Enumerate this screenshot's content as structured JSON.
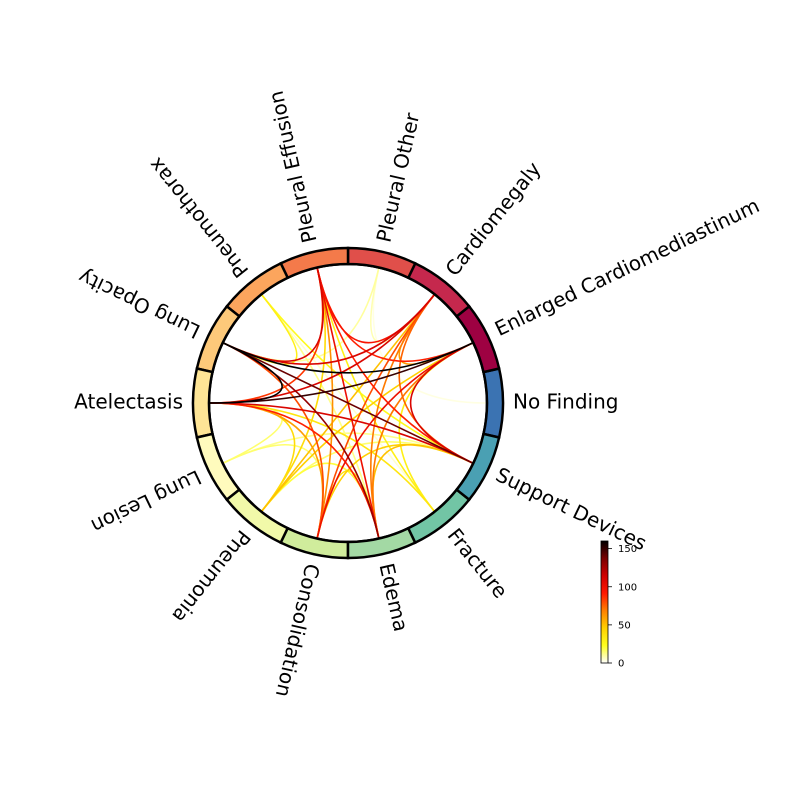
{
  "chart_data": {
    "type": "chord",
    "title": "",
    "nodes": [
      {
        "name": "No Finding",
        "color": "#3b73b2"
      },
      {
        "name": "Enlarged Cardiomediastinum",
        "color": "#9e0142"
      },
      {
        "name": "Cardiomegaly",
        "color": "#c5284d"
      },
      {
        "name": "Pleural Other",
        "color": "#e04f4a"
      },
      {
        "name": "Pleural Effusion",
        "color": "#f47a4a"
      },
      {
        "name": "Pneumothorax",
        "color": "#fca55d"
      },
      {
        "name": "Lung Opacity",
        "color": "#fdc97a"
      },
      {
        "name": "Atelectasis",
        "color": "#fee596"
      },
      {
        "name": "Lung Lesion",
        "color": "#fffbbd"
      },
      {
        "name": "Pneumonia",
        "color": "#f1f9a9"
      },
      {
        "name": "Consolidation",
        "color": "#d0ec9c"
      },
      {
        "name": "Edema",
        "color": "#a3d9a4"
      },
      {
        "name": "Fracture",
        "color": "#72c5a5"
      },
      {
        "name": "Support Devices",
        "color": "#4aa0b3"
      }
    ],
    "links": [
      {
        "source": "Lung Opacity",
        "target": "Atelectasis",
        "value": 160
      },
      {
        "source": "Lung Opacity",
        "target": "Enlarged Cardiomediastinum",
        "value": 160
      },
      {
        "source": "Atelectasis",
        "target": "Enlarged Cardiomediastinum",
        "value": 150
      },
      {
        "source": "Lung Opacity",
        "target": "Support Devices",
        "value": 140
      },
      {
        "source": "Lung Opacity",
        "target": "Edema",
        "value": 130
      },
      {
        "source": "Atelectasis",
        "target": "Cardiomegaly",
        "value": 110
      },
      {
        "source": "Lung Opacity",
        "target": "Cardiomegaly",
        "value": 110
      },
      {
        "source": "Lung Opacity",
        "target": "Pleural Effusion",
        "value": 110
      },
      {
        "source": "Atelectasis",
        "target": "Support Devices",
        "value": 110
      },
      {
        "source": "Enlarged Cardiomediastinum",
        "target": "Support Devices",
        "value": 110
      },
      {
        "source": "Enlarged Cardiomediastinum",
        "target": "Consolidation",
        "value": 100
      },
      {
        "source": "Pleural Effusion",
        "target": "Edema",
        "value": 100
      },
      {
        "source": "Pleural Effusion",
        "target": "Cardiomegaly",
        "value": 95
      },
      {
        "source": "Pleural Effusion",
        "target": "Enlarged Cardiomediastinum",
        "value": 90
      },
      {
        "source": "Pleural Effusion",
        "target": "Support Devices",
        "value": 90
      },
      {
        "source": "Atelectasis",
        "target": "Edema",
        "value": 90
      },
      {
        "source": "Atelectasis",
        "target": "Pleural Effusion",
        "value": 85
      },
      {
        "source": "Lung Opacity",
        "target": "Consolidation",
        "value": 80
      },
      {
        "source": "Cardiomegaly",
        "target": "Consolidation",
        "value": 80
      },
      {
        "source": "Cardiomegaly",
        "target": "Support Devices",
        "value": 75
      },
      {
        "source": "Cardiomegaly",
        "target": "Edema",
        "value": 70
      },
      {
        "source": "Enlarged Cardiomediastinum",
        "target": "Edema",
        "value": 70
      },
      {
        "source": "Pleural Effusion",
        "target": "Consolidation",
        "value": 65
      },
      {
        "source": "Atelectasis",
        "target": "Consolidation",
        "value": 60
      },
      {
        "source": "Cardiomegaly",
        "target": "Enlarged Cardiomediastinum",
        "value": 60
      },
      {
        "source": "Cardiomegaly",
        "target": "Pneumonia",
        "value": 50
      },
      {
        "source": "Edema",
        "target": "Support Devices",
        "value": 50
      },
      {
        "source": "Consolidation",
        "target": "Support Devices",
        "value": 45
      },
      {
        "source": "Enlarged Cardiomediastinum",
        "target": "Pneumonia",
        "value": 45
      },
      {
        "source": "Atelectasis",
        "target": "Pneumonia",
        "value": 40
      },
      {
        "source": "Pleural Effusion",
        "target": "Pneumonia",
        "value": 40
      },
      {
        "source": "Consolidation",
        "target": "Edema",
        "value": 35
      },
      {
        "source": "Atelectasis",
        "target": "Fracture",
        "value": 35
      },
      {
        "source": "Pleural Effusion",
        "target": "Fracture",
        "value": 30
      },
      {
        "source": "Enlarged Cardiomediastinum",
        "target": "Fracture",
        "value": 30
      },
      {
        "source": "Lung Opacity",
        "target": "Pneumothorax",
        "value": 30
      },
      {
        "source": "Pneumothorax",
        "target": "Support Devices",
        "value": 25
      },
      {
        "source": "Pneumonia",
        "target": "Edema",
        "value": 20
      },
      {
        "source": "Lung Lesion",
        "target": "Atelectasis",
        "value": 15
      },
      {
        "source": "Lung Lesion",
        "target": "Consolidation",
        "value": 15
      },
      {
        "source": "Lung Lesion",
        "target": "Support Devices",
        "value": 12
      },
      {
        "source": "Pneumothorax",
        "target": "Edema",
        "value": 12
      },
      {
        "source": "Pleural Other",
        "target": "Lung Opacity",
        "value": 10
      },
      {
        "source": "Pleural Other",
        "target": "Cardiomegaly",
        "value": 8
      },
      {
        "source": "Pneumonia",
        "target": "Support Devices",
        "value": 15
      },
      {
        "source": "No Finding",
        "target": "Pleural Other",
        "value": 3
      },
      {
        "source": "Fracture",
        "target": "Pneumothorax",
        "value": 5
      }
    ],
    "colorbar": {
      "colormap": "hot_r",
      "range": [
        0,
        160
      ],
      "ticks": [
        0,
        50,
        100,
        150
      ],
      "tick_labels": [
        "0",
        "50",
        "100",
        "150"
      ],
      "colors": [
        "#ffffff",
        "#ffff20",
        "#ffd000",
        "#ff8000",
        "#ff1800",
        "#d00000",
        "#7a0000",
        "#000000"
      ]
    }
  }
}
